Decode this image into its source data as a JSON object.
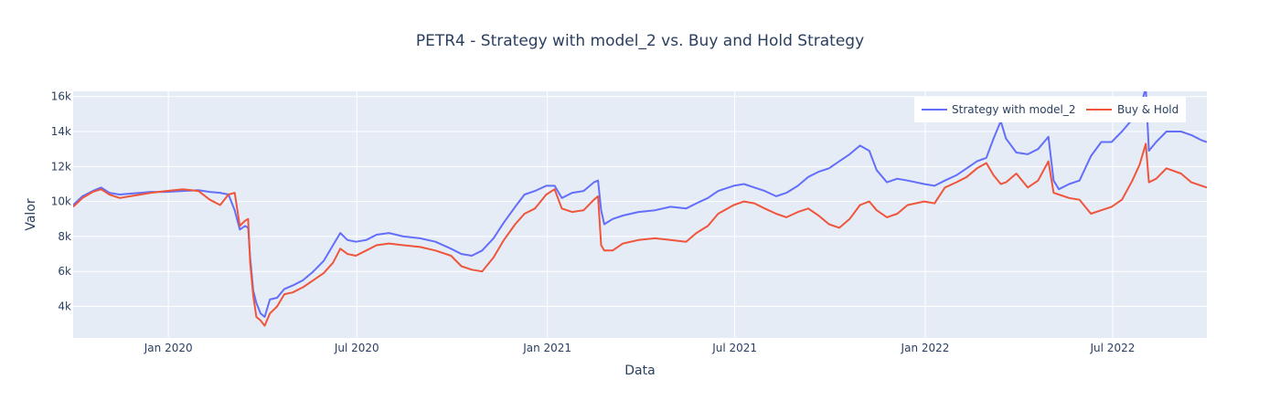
{
  "chart_data": {
    "type": "line",
    "title": "PETR4 - Strategy with model_2 vs. Buy and Hold Strategy",
    "xlabel": "Data",
    "ylabel": "Valor",
    "x_range": [
      "2019-10-01",
      "2022-09-30"
    ],
    "ylim": [
      2200,
      16300
    ],
    "x_ticks": [
      {
        "date": "2020-01-01",
        "label": "Jan 2020"
      },
      {
        "date": "2020-07-01",
        "label": "Jul 2020"
      },
      {
        "date": "2021-01-01",
        "label": "Jan 2021"
      },
      {
        "date": "2021-07-01",
        "label": "Jul 2021"
      },
      {
        "date": "2022-01-01",
        "label": "Jan 2022"
      },
      {
        "date": "2022-07-01",
        "label": "Jul 2022"
      }
    ],
    "y_ticks": [
      {
        "value": 4000,
        "label": "4k"
      },
      {
        "value": 6000,
        "label": "6k"
      },
      {
        "value": 8000,
        "label": "8k"
      },
      {
        "value": 10000,
        "label": "10k"
      },
      {
        "value": 12000,
        "label": "12k"
      },
      {
        "value": 14000,
        "label": "14k"
      },
      {
        "value": 16000,
        "label": "16k"
      }
    ],
    "grid": true,
    "legend_position": "top-right",
    "background_color": "#e5ecf6",
    "series": [
      {
        "name": "Strategy with model_2",
        "color": "#636efa",
        "points": [
          [
            "2019-10-01",
            9800
          ],
          [
            "2019-10-10",
            10300
          ],
          [
            "2019-10-20",
            10600
          ],
          [
            "2019-10-28",
            10800
          ],
          [
            "2019-11-05",
            10500
          ],
          [
            "2019-11-15",
            10400
          ],
          [
            "2019-11-25",
            10450
          ],
          [
            "2019-12-05",
            10500
          ],
          [
            "2019-12-15",
            10550
          ],
          [
            "2019-12-30",
            10550
          ],
          [
            "2020-01-15",
            10600
          ],
          [
            "2020-01-30",
            10650
          ],
          [
            "2020-02-10",
            10550
          ],
          [
            "2020-02-20",
            10500
          ],
          [
            "2020-02-28",
            10400
          ],
          [
            "2020-03-05",
            9500
          ],
          [
            "2020-03-10",
            8400
          ],
          [
            "2020-03-15",
            8600
          ],
          [
            "2020-03-18",
            8500
          ],
          [
            "2020-03-20",
            6800
          ],
          [
            "2020-03-23",
            4900
          ],
          [
            "2020-03-26",
            4200
          ],
          [
            "2020-03-30",
            3600
          ],
          [
            "2020-04-03",
            3400
          ],
          [
            "2020-04-08",
            4400
          ],
          [
            "2020-04-15",
            4500
          ],
          [
            "2020-04-22",
            5000
          ],
          [
            "2020-04-30",
            5200
          ],
          [
            "2020-05-10",
            5500
          ],
          [
            "2020-05-20",
            6000
          ],
          [
            "2020-05-30",
            6600
          ],
          [
            "2020-06-08",
            7500
          ],
          [
            "2020-06-15",
            8200
          ],
          [
            "2020-06-22",
            7800
          ],
          [
            "2020-06-30",
            7700
          ],
          [
            "2020-07-10",
            7800
          ],
          [
            "2020-07-20",
            8100
          ],
          [
            "2020-08-01",
            8200
          ],
          [
            "2020-08-15",
            8000
          ],
          [
            "2020-08-31",
            7900
          ],
          [
            "2020-09-15",
            7700
          ],
          [
            "2020-09-30",
            7300
          ],
          [
            "2020-10-10",
            7000
          ],
          [
            "2020-10-20",
            6900
          ],
          [
            "2020-10-30",
            7200
          ],
          [
            "2020-11-10",
            7900
          ],
          [
            "2020-11-20",
            8800
          ],
          [
            "2020-12-01",
            9700
          ],
          [
            "2020-12-10",
            10400
          ],
          [
            "2020-12-20",
            10600
          ],
          [
            "2020-12-31",
            10900
          ],
          [
            "2021-01-08",
            10900
          ],
          [
            "2021-01-15",
            10200
          ],
          [
            "2021-01-25",
            10500
          ],
          [
            "2021-02-05",
            10600
          ],
          [
            "2021-02-15",
            11100
          ],
          [
            "2021-02-19",
            11200
          ],
          [
            "2021-02-22",
            9500
          ],
          [
            "2021-02-25",
            8700
          ],
          [
            "2021-03-05",
            9000
          ],
          [
            "2021-03-15",
            9200
          ],
          [
            "2021-03-30",
            9400
          ],
          [
            "2021-04-15",
            9500
          ],
          [
            "2021-04-30",
            9700
          ],
          [
            "2021-05-15",
            9600
          ],
          [
            "2021-05-25",
            9900
          ],
          [
            "2021-06-05",
            10200
          ],
          [
            "2021-06-15",
            10600
          ],
          [
            "2021-06-30",
            10900
          ],
          [
            "2021-07-10",
            11000
          ],
          [
            "2021-07-20",
            10800
          ],
          [
            "2021-07-30",
            10600
          ],
          [
            "2021-08-10",
            10300
          ],
          [
            "2021-08-20",
            10500
          ],
          [
            "2021-08-31",
            10900
          ],
          [
            "2021-09-10",
            11400
          ],
          [
            "2021-09-20",
            11700
          ],
          [
            "2021-09-30",
            11900
          ],
          [
            "2021-10-10",
            12300
          ],
          [
            "2021-10-20",
            12700
          ],
          [
            "2021-10-30",
            13200
          ],
          [
            "2021-11-08",
            12900
          ],
          [
            "2021-11-15",
            11800
          ],
          [
            "2021-11-25",
            11100
          ],
          [
            "2021-12-05",
            11300
          ],
          [
            "2021-12-15",
            11200
          ],
          [
            "2021-12-31",
            11000
          ],
          [
            "2022-01-10",
            10900
          ],
          [
            "2022-01-20",
            11200
          ],
          [
            "2022-01-31",
            11500
          ],
          [
            "2022-02-10",
            11900
          ],
          [
            "2022-02-20",
            12300
          ],
          [
            "2022-03-01",
            12500
          ],
          [
            "2022-03-08",
            13600
          ],
          [
            "2022-03-15",
            14600
          ],
          [
            "2022-03-20",
            13600
          ],
          [
            "2022-03-30",
            12800
          ],
          [
            "2022-04-10",
            12700
          ],
          [
            "2022-04-20",
            13000
          ],
          [
            "2022-04-30",
            13700
          ],
          [
            "2022-05-05",
            11200
          ],
          [
            "2022-05-10",
            10700
          ],
          [
            "2022-05-20",
            11000
          ],
          [
            "2022-05-30",
            11200
          ],
          [
            "2022-06-10",
            12600
          ],
          [
            "2022-06-20",
            13400
          ],
          [
            "2022-06-30",
            13400
          ],
          [
            "2022-07-10",
            14000
          ],
          [
            "2022-07-20",
            14700
          ],
          [
            "2022-07-27",
            15200
          ],
          [
            "2022-08-02",
            16500
          ],
          [
            "2022-08-05",
            12900
          ],
          [
            "2022-08-12",
            13400
          ],
          [
            "2022-08-22",
            14000
          ],
          [
            "2022-09-05",
            14000
          ],
          [
            "2022-09-15",
            13800
          ],
          [
            "2022-09-25",
            13500
          ],
          [
            "2022-09-30",
            13400
          ]
        ]
      },
      {
        "name": "Buy & Hold",
        "color": "#ef553b",
        "points": [
          [
            "2019-10-01",
            9700
          ],
          [
            "2019-10-10",
            10200
          ],
          [
            "2019-10-20",
            10550
          ],
          [
            "2019-10-28",
            10700
          ],
          [
            "2019-11-05",
            10400
          ],
          [
            "2019-11-15",
            10200
          ],
          [
            "2019-11-25",
            10300
          ],
          [
            "2019-12-05",
            10400
          ],
          [
            "2019-12-15",
            10500
          ],
          [
            "2019-12-30",
            10600
          ],
          [
            "2020-01-15",
            10700
          ],
          [
            "2020-01-30",
            10600
          ],
          [
            "2020-02-10",
            10100
          ],
          [
            "2020-02-20",
            9800
          ],
          [
            "2020-02-28",
            10400
          ],
          [
            "2020-03-05",
            10500
          ],
          [
            "2020-03-10",
            8600
          ],
          [
            "2020-03-15",
            8900
          ],
          [
            "2020-03-18",
            9000
          ],
          [
            "2020-03-20",
            6500
          ],
          [
            "2020-03-23",
            4600
          ],
          [
            "2020-03-26",
            3400
          ],
          [
            "2020-03-30",
            3200
          ],
          [
            "2020-04-03",
            2900
          ],
          [
            "2020-04-08",
            3600
          ],
          [
            "2020-04-15",
            4000
          ],
          [
            "2020-04-22",
            4700
          ],
          [
            "2020-04-30",
            4800
          ],
          [
            "2020-05-10",
            5100
          ],
          [
            "2020-05-20",
            5500
          ],
          [
            "2020-05-30",
            5900
          ],
          [
            "2020-06-08",
            6500
          ],
          [
            "2020-06-15",
            7300
          ],
          [
            "2020-06-22",
            7000
          ],
          [
            "2020-06-30",
            6900
          ],
          [
            "2020-07-10",
            7200
          ],
          [
            "2020-07-20",
            7500
          ],
          [
            "2020-08-01",
            7600
          ],
          [
            "2020-08-15",
            7500
          ],
          [
            "2020-08-31",
            7400
          ],
          [
            "2020-09-15",
            7200
          ],
          [
            "2020-09-30",
            6900
          ],
          [
            "2020-10-10",
            6300
          ],
          [
            "2020-10-20",
            6100
          ],
          [
            "2020-10-30",
            6000
          ],
          [
            "2020-11-10",
            6800
          ],
          [
            "2020-11-20",
            7800
          ],
          [
            "2020-12-01",
            8700
          ],
          [
            "2020-12-10",
            9300
          ],
          [
            "2020-12-20",
            9600
          ],
          [
            "2020-12-31",
            10400
          ],
          [
            "2021-01-08",
            10700
          ],
          [
            "2021-01-15",
            9600
          ],
          [
            "2021-01-25",
            9400
          ],
          [
            "2021-02-05",
            9500
          ],
          [
            "2021-02-15",
            10100
          ],
          [
            "2021-02-19",
            10300
          ],
          [
            "2021-02-22",
            7500
          ],
          [
            "2021-02-25",
            7200
          ],
          [
            "2021-03-05",
            7200
          ],
          [
            "2021-03-15",
            7600
          ],
          [
            "2021-03-30",
            7800
          ],
          [
            "2021-04-15",
            7900
          ],
          [
            "2021-04-30",
            7800
          ],
          [
            "2021-05-15",
            7700
          ],
          [
            "2021-05-25",
            8200
          ],
          [
            "2021-06-05",
            8600
          ],
          [
            "2021-06-15",
            9300
          ],
          [
            "2021-06-30",
            9800
          ],
          [
            "2021-07-10",
            10000
          ],
          [
            "2021-07-20",
            9900
          ],
          [
            "2021-07-30",
            9600
          ],
          [
            "2021-08-10",
            9300
          ],
          [
            "2021-08-20",
            9100
          ],
          [
            "2021-08-31",
            9400
          ],
          [
            "2021-09-10",
            9600
          ],
          [
            "2021-09-20",
            9200
          ],
          [
            "2021-09-30",
            8700
          ],
          [
            "2021-10-10",
            8500
          ],
          [
            "2021-10-20",
            9000
          ],
          [
            "2021-10-30",
            9800
          ],
          [
            "2021-11-08",
            10000
          ],
          [
            "2021-11-15",
            9500
          ],
          [
            "2021-11-25",
            9100
          ],
          [
            "2021-12-05",
            9300
          ],
          [
            "2021-12-15",
            9800
          ],
          [
            "2021-12-31",
            10000
          ],
          [
            "2022-01-10",
            9900
          ],
          [
            "2022-01-20",
            10800
          ],
          [
            "2022-01-31",
            11100
          ],
          [
            "2022-02-10",
            11400
          ],
          [
            "2022-02-20",
            11900
          ],
          [
            "2022-03-01",
            12200
          ],
          [
            "2022-03-08",
            11500
          ],
          [
            "2022-03-15",
            11000
          ],
          [
            "2022-03-20",
            11100
          ],
          [
            "2022-03-30",
            11600
          ],
          [
            "2022-04-10",
            10800
          ],
          [
            "2022-04-20",
            11200
          ],
          [
            "2022-04-30",
            12300
          ],
          [
            "2022-05-05",
            10500
          ],
          [
            "2022-05-10",
            10400
          ],
          [
            "2022-05-20",
            10200
          ],
          [
            "2022-05-30",
            10100
          ],
          [
            "2022-06-10",
            9300
          ],
          [
            "2022-06-20",
            9500
          ],
          [
            "2022-06-30",
            9700
          ],
          [
            "2022-07-10",
            10100
          ],
          [
            "2022-07-20",
            11200
          ],
          [
            "2022-07-27",
            12100
          ],
          [
            "2022-08-02",
            13300
          ],
          [
            "2022-08-05",
            11100
          ],
          [
            "2022-08-12",
            11300
          ],
          [
            "2022-08-22",
            11900
          ],
          [
            "2022-09-05",
            11600
          ],
          [
            "2022-09-15",
            11100
          ],
          [
            "2022-09-25",
            10900
          ],
          [
            "2022-09-30",
            10800
          ]
        ]
      }
    ]
  }
}
